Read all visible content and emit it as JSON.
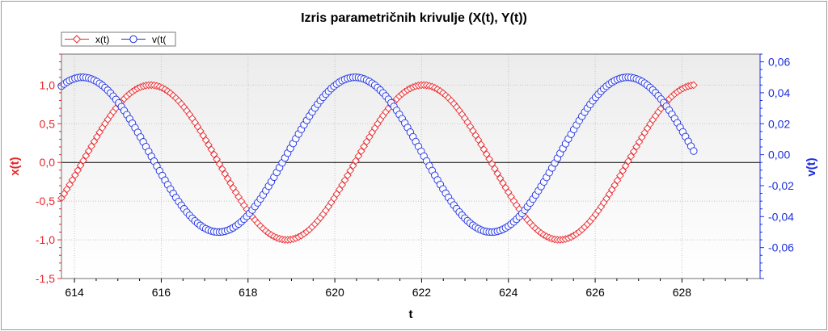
{
  "chart_data": {
    "type": "scatter",
    "title": "Izris parametričnih krivulje (X(t), Y(t))",
    "xlabel": "t",
    "ylabel": "x(t)",
    "y2label": "v(t)",
    "xlim": [
      613.7,
      629.8
    ],
    "ylim": [
      -1.5,
      1.4
    ],
    "y2lim": [
      -0.08,
      0.065
    ],
    "xticks": [
      "614",
      "616",
      "618",
      "620",
      "622",
      "624",
      "626",
      "628"
    ],
    "yticks": [
      "1,0",
      "0,5",
      "0,0",
      "-0,5",
      "-1,0",
      "-1,5"
    ],
    "y2ticks": [
      "0,06",
      "0,04",
      "0,02",
      "0,00",
      "-0,02",
      "-0,04",
      "-0,06"
    ],
    "legend_position": "top-left",
    "series": [
      {
        "name": "x(t)",
        "axis": "left",
        "color": "#e8282d",
        "marker": "diamond",
        "t_start": 613.7,
        "t_end": 628.3,
        "t_step": 0.0628,
        "amplitude": 1.0,
        "period": 6.2832,
        "peak_t": 615.75,
        "function": "cos"
      },
      {
        "name": "v(t(",
        "axis": "right",
        "color": "#1c2fe0",
        "marker": "circle",
        "t_start": 613.7,
        "t_end": 628.3,
        "t_step": 0.0628,
        "amplitude": 0.05,
        "period": 6.2832,
        "peak_t": 614.18,
        "function": "cos"
      }
    ]
  },
  "colors": {
    "left_axis": "#e8282d",
    "right_axis": "#1c2fe0",
    "plot_bg_top": "#ececec",
    "plot_bg_bottom": "#ffffff",
    "grid": "#c4c4c4"
  }
}
